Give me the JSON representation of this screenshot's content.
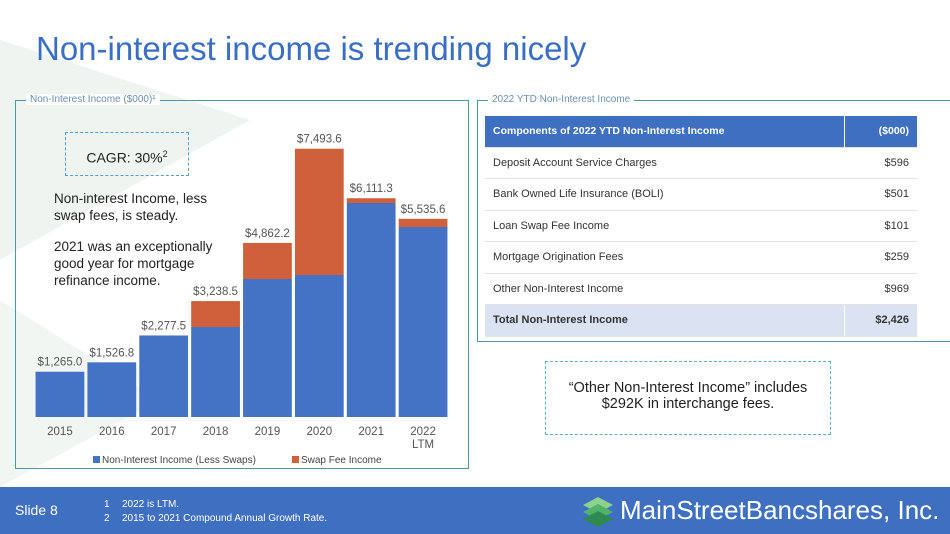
{
  "title": "Non-interest income is trending nicely",
  "chart_data": {
    "type": "stacked-bar",
    "subtitle": "Non-Interest Income ($000)¹",
    "categories": [
      "2015",
      "2016",
      "2017",
      "2018",
      "2019",
      "2020",
      "2021",
      "2022 LTM"
    ],
    "series": [
      {
        "name": "Non-Interest Income (Less Swaps)",
        "color": "#4472c4",
        "values": [
          1265.0,
          1526.8,
          2277.5,
          2514,
          3855,
          3966,
          5978,
          5307
        ]
      },
      {
        "name": "Swap Fee Income",
        "color": "#d0603a",
        "values": [
          0,
          0,
          0,
          724.5,
          1007.2,
          3527.6,
          133.3,
          228.6
        ]
      }
    ],
    "total_labels": [
      "$1,265.0",
      "$1,526.8",
      "$2,277.5",
      "$3,238.5",
      "$4,862.2",
      "$7,493.6",
      "$6,111.3",
      "$5,535.6"
    ],
    "ylim": [
      0,
      8000
    ],
    "legend": "bottom",
    "cagr": {
      "text": "CAGR: 30%",
      "footnote": "2"
    },
    "notes": [
      "Non-interest Income, less swap fees, is steady.",
      "2021 was an exceptionally good year for mortgage refinance income."
    ]
  },
  "table": {
    "caption": "2022 YTD Non-Interest Income",
    "header": [
      "Components of 2022 YTD Non-Interest Income",
      "($000)"
    ],
    "rows": [
      [
        "Deposit Account Service Charges",
        "$596"
      ],
      [
        "Bank Owned Life Insurance (BOLI)",
        "$501"
      ],
      [
        "Loan Swap Fee Income",
        "$101"
      ],
      [
        "Mortgage Origination Fees",
        "$259"
      ],
      [
        "Other Non-Interest Income",
        "$969"
      ]
    ],
    "total": [
      "Total Non-Interest Income",
      "$2,426"
    ]
  },
  "callout": "“Other Non-Interest Income” includes $292K in interchange fees.",
  "footer": {
    "slide": "Slide 8",
    "footnotes": [
      [
        "1",
        "2022 is LTM."
      ],
      [
        "2",
        "2015 to 2021 Compound Annual Growth Rate."
      ]
    ],
    "logo": "MainStreetBancshares, Inc."
  }
}
